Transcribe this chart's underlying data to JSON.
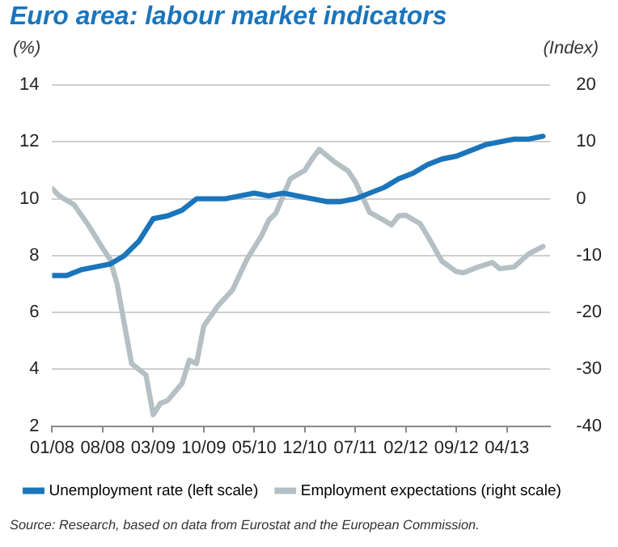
{
  "chart_data": {
    "type": "line",
    "title": "Euro area: labour market indicators",
    "ylabel": "(%)",
    "y2label": "(Index)",
    "xlim": [
      "2008-01",
      "2013-10"
    ],
    "xticks": [
      {
        "value": "2008-01",
        "label": "01/08"
      },
      {
        "value": "2008-08",
        "label": "08/08"
      },
      {
        "value": "2009-03",
        "label": "03/09"
      },
      {
        "value": "2009-10",
        "label": "10/09"
      },
      {
        "value": "2010-05",
        "label": "05/10"
      },
      {
        "value": "2010-12",
        "label": "12/10"
      },
      {
        "value": "2011-07",
        "label": "07/11"
      },
      {
        "value": "2012-02",
        "label": "02/12"
      },
      {
        "value": "2012-09",
        "label": "09/12"
      },
      {
        "value": "2013-04",
        "label": "04/13"
      }
    ],
    "ylim": [
      2,
      14
    ],
    "yticks": [
      2,
      4,
      6,
      8,
      10,
      12,
      14
    ],
    "y2lim": [
      -40,
      20
    ],
    "y2ticks": [
      -40,
      -30,
      -20,
      -10,
      0,
      10,
      20
    ],
    "grid": "y",
    "legend": "bottom",
    "marker": "none",
    "line_style": "solid",
    "series": [
      {
        "name": "Unemployment rate (left scale)",
        "color": "#1a75bb",
        "x": [
          "2008-01",
          "2008-03",
          "2008-05",
          "2008-07",
          "2008-09",
          "2008-11",
          "2009-01",
          "2009-03",
          "2009-05",
          "2009-07",
          "2009-09",
          "2009-11",
          "2010-01",
          "2010-03",
          "2010-05",
          "2010-07",
          "2010-09",
          "2010-11",
          "2011-01",
          "2011-03",
          "2011-05",
          "2011-07",
          "2011-09",
          "2011-11",
          "2012-01",
          "2012-03",
          "2012-05",
          "2012-07",
          "2012-09",
          "2012-11",
          "2013-01",
          "2013-03",
          "2013-05",
          "2013-07",
          "2013-09"
        ],
        "values": [
          7.3,
          7.3,
          7.5,
          7.6,
          7.7,
          8.0,
          8.5,
          9.3,
          9.4,
          9.6,
          10.0,
          10.0,
          10.0,
          10.1,
          10.2,
          10.1,
          10.2,
          10.1,
          10.0,
          9.9,
          9.9,
          10.0,
          10.2,
          10.4,
          10.7,
          10.9,
          11.2,
          11.4,
          11.5,
          11.7,
          11.9,
          12.0,
          12.1,
          12.1,
          12.2
        ]
      },
      {
        "name": "Employment expectations (right scale)",
        "color": "#b4c0c4",
        "axis": "y2",
        "x": [
          "2008-01",
          "2008-02",
          "2008-04",
          "2008-06",
          "2008-08",
          "2008-09",
          "2008-10",
          "2008-12",
          "2009-02",
          "2009-03",
          "2009-04",
          "2009-05",
          "2009-07",
          "2009-08",
          "2009-09",
          "2009-10",
          "2009-12",
          "2010-02",
          "2010-04",
          "2010-06",
          "2010-07",
          "2010-08",
          "2010-10",
          "2010-12",
          "2011-01",
          "2011-02",
          "2011-04",
          "2011-06",
          "2011-07",
          "2011-08",
          "2011-09",
          "2011-11",
          "2011-12",
          "2012-01",
          "2012-02",
          "2012-04",
          "2012-05",
          "2012-07",
          "2012-09",
          "2012-10",
          "2012-12",
          "2013-02",
          "2013-03",
          "2013-05",
          "2013-07",
          "2013-09"
        ],
        "values": [
          1.8,
          0.5,
          -1,
          -4.6,
          -8.7,
          -10.6,
          -15,
          -29,
          -31,
          -38,
          -36,
          -35.5,
          -32.5,
          -28.4,
          -29,
          -22.4,
          -18.8,
          -16,
          -10.6,
          -6.5,
          -3.8,
          -2.5,
          3.5,
          5,
          7,
          8.7,
          6.6,
          4.9,
          3,
          0.3,
          -2.4,
          -3.8,
          -4.6,
          -3,
          -2.9,
          -4.4,
          -6.5,
          -11,
          -12.8,
          -13,
          -12,
          -11.2,
          -12.3,
          -12,
          -9.7,
          -8.4
        ]
      }
    ],
    "annotations": [
      "Source: Research, based on data from Eurostat and the European Commission."
    ]
  }
}
